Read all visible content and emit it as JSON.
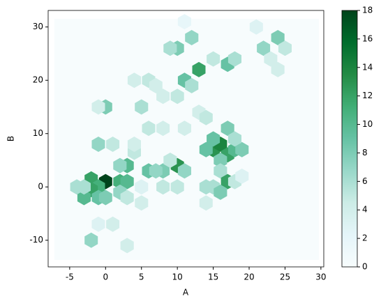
{
  "chart_data": {
    "type": "hexbin",
    "x_label": "A",
    "y_label": "B",
    "xlim": [
      -8,
      30.4
    ],
    "ylim": [
      -15,
      33.1
    ],
    "xticks": [
      -5,
      0,
      5,
      10,
      15,
      20,
      25,
      30
    ],
    "yticks": [
      -10,
      0,
      10,
      20,
      30
    ],
    "clim": [
      0,
      18
    ],
    "cticks": [
      0,
      2,
      4,
      6,
      8,
      10,
      12,
      14,
      16,
      18
    ],
    "colormap": [
      "#f7fcfd",
      "#e5f5f9",
      "#ccece6",
      "#99d8c9",
      "#66c2a4",
      "#41ae76",
      "#238b45",
      "#006d2c",
      "#00441b"
    ],
    "x": [
      0,
      -2,
      -1,
      -2,
      2,
      3,
      -3,
      -1,
      0,
      -4,
      -3,
      2,
      3,
      3,
      2,
      4,
      10,
      8,
      6,
      7,
      11,
      9,
      15,
      16,
      17,
      14,
      18,
      19,
      16,
      15,
      17,
      18,
      16,
      17,
      15,
      16,
      14,
      18,
      14,
      19,
      13,
      11,
      12,
      10,
      8,
      5,
      6,
      7,
      4,
      10,
      9,
      12,
      17,
      18,
      15,
      22,
      24,
      25,
      23,
      24,
      21,
      11,
      0,
      -1,
      -2,
      1,
      3,
      -1,
      5,
      8,
      10,
      5,
      6,
      8,
      11,
      13,
      14,
      1,
      -1,
      4
    ],
    "y": [
      1,
      1.5,
      0,
      -0.5,
      1,
      1,
      -2,
      -2,
      -2,
      0,
      0,
      -1,
      -2,
      4,
      4,
      6.5,
      4,
      3,
      3,
      3,
      3,
      5,
      7,
      8,
      6,
      7,
      7,
      7,
      5,
      9,
      11,
      9,
      3,
      1,
      0,
      -1,
      0,
      1,
      -3,
      2,
      22,
      20,
      19,
      17,
      17,
      15,
      20,
      19,
      20,
      26,
      26,
      28,
      23,
      24,
      24,
      26,
      28,
      26,
      24,
      22,
      30,
      31,
      15,
      15,
      -10,
      -7,
      -11,
      -7,
      -3,
      0,
      0,
      0,
      11,
      11,
      11,
      14,
      13,
      8,
      8,
      8
    ],
    "values": [
      18,
      12,
      11,
      12,
      11,
      10,
      10,
      9,
      8,
      6,
      6,
      7,
      5,
      10,
      7,
      5,
      13,
      8,
      9,
      7,
      7,
      5,
      13,
      14,
      12,
      9,
      10,
      8,
      8,
      9,
      8,
      6,
      6,
      12,
      6,
      8,
      6,
      5,
      4,
      3,
      12,
      9,
      6,
      5,
      4,
      6,
      5,
      4,
      4,
      8,
      6,
      7,
      9,
      6,
      5,
      7,
      8,
      5,
      4,
      4,
      3,
      2,
      8,
      4,
      7,
      4,
      4,
      3,
      4,
      5,
      5,
      3,
      5,
      4,
      4,
      4,
      5,
      5,
      7,
      4
    ]
  }
}
